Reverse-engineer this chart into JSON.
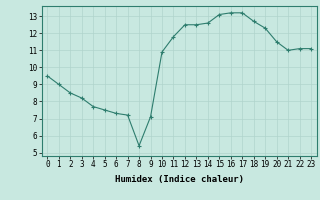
{
  "x": [
    0,
    1,
    2,
    3,
    4,
    5,
    6,
    7,
    8,
    9,
    10,
    11,
    12,
    13,
    14,
    15,
    16,
    17,
    18,
    19,
    20,
    21,
    22,
    23
  ],
  "y": [
    9.5,
    9.0,
    8.5,
    8.2,
    7.7,
    7.5,
    7.3,
    7.2,
    5.4,
    7.1,
    10.9,
    11.8,
    12.5,
    12.5,
    12.6,
    13.1,
    13.2,
    13.2,
    12.7,
    12.3,
    11.5,
    11.0,
    11.1,
    11.1
  ],
  "xlabel": "Humidex (Indice chaleur)",
  "ylim": [
    4.8,
    13.6
  ],
  "xlim": [
    -0.5,
    23.5
  ],
  "yticks": [
    5,
    6,
    7,
    8,
    9,
    10,
    11,
    12,
    13
  ],
  "xticks": [
    0,
    1,
    2,
    3,
    4,
    5,
    6,
    7,
    8,
    9,
    10,
    11,
    12,
    13,
    14,
    15,
    16,
    17,
    18,
    19,
    20,
    21,
    22,
    23
  ],
  "line_color": "#2e7d6e",
  "marker_color": "#2e7d6e",
  "bg_color": "#c8e8e0",
  "grid_color": "#b0d4cc",
  "axis_color": "#2e7d6e",
  "label_color": "#000000",
  "tick_fontsize": 5.5,
  "xlabel_fontsize": 6.5
}
